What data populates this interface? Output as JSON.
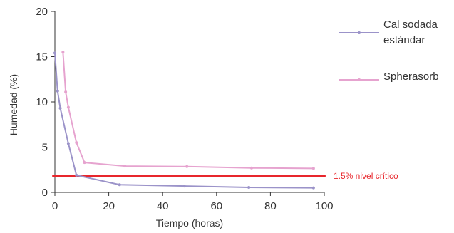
{
  "chart_data": {
    "type": "line",
    "xlabel": "Tiempo (horas)",
    "ylabel": "Humedad (%)",
    "xlim": [
      0,
      100
    ],
    "ylim": [
      0,
      20
    ],
    "xticks": [
      0,
      20,
      40,
      60,
      80,
      100
    ],
    "yticks": [
      0,
      5,
      10,
      15,
      20
    ],
    "grid": false,
    "legend_position": "right",
    "series": [
      {
        "name_lines": [
          "Cal sodada",
          "estándar"
        ],
        "color": "#9b93c9",
        "x": [
          0,
          1,
          2,
          5,
          8,
          24,
          48,
          72,
          96
        ],
        "y": [
          15.4,
          11.2,
          9.3,
          5.4,
          1.9,
          0.85,
          0.7,
          0.55,
          0.5
        ]
      },
      {
        "name_lines": [
          "Spherasorb"
        ],
        "color": "#e6a3cf",
        "x": [
          3,
          4,
          5,
          8,
          11,
          26,
          49,
          73,
          96
        ],
        "y": [
          15.5,
          11.1,
          9.4,
          5.5,
          3.3,
          2.9,
          2.85,
          2.7,
          2.65
        ]
      }
    ],
    "reference_line": {
      "y": 1.5,
      "x_range": [
        -1,
        100.5
      ],
      "label": "1.5% nivel crítico",
      "color": "#e8262c"
    }
  }
}
